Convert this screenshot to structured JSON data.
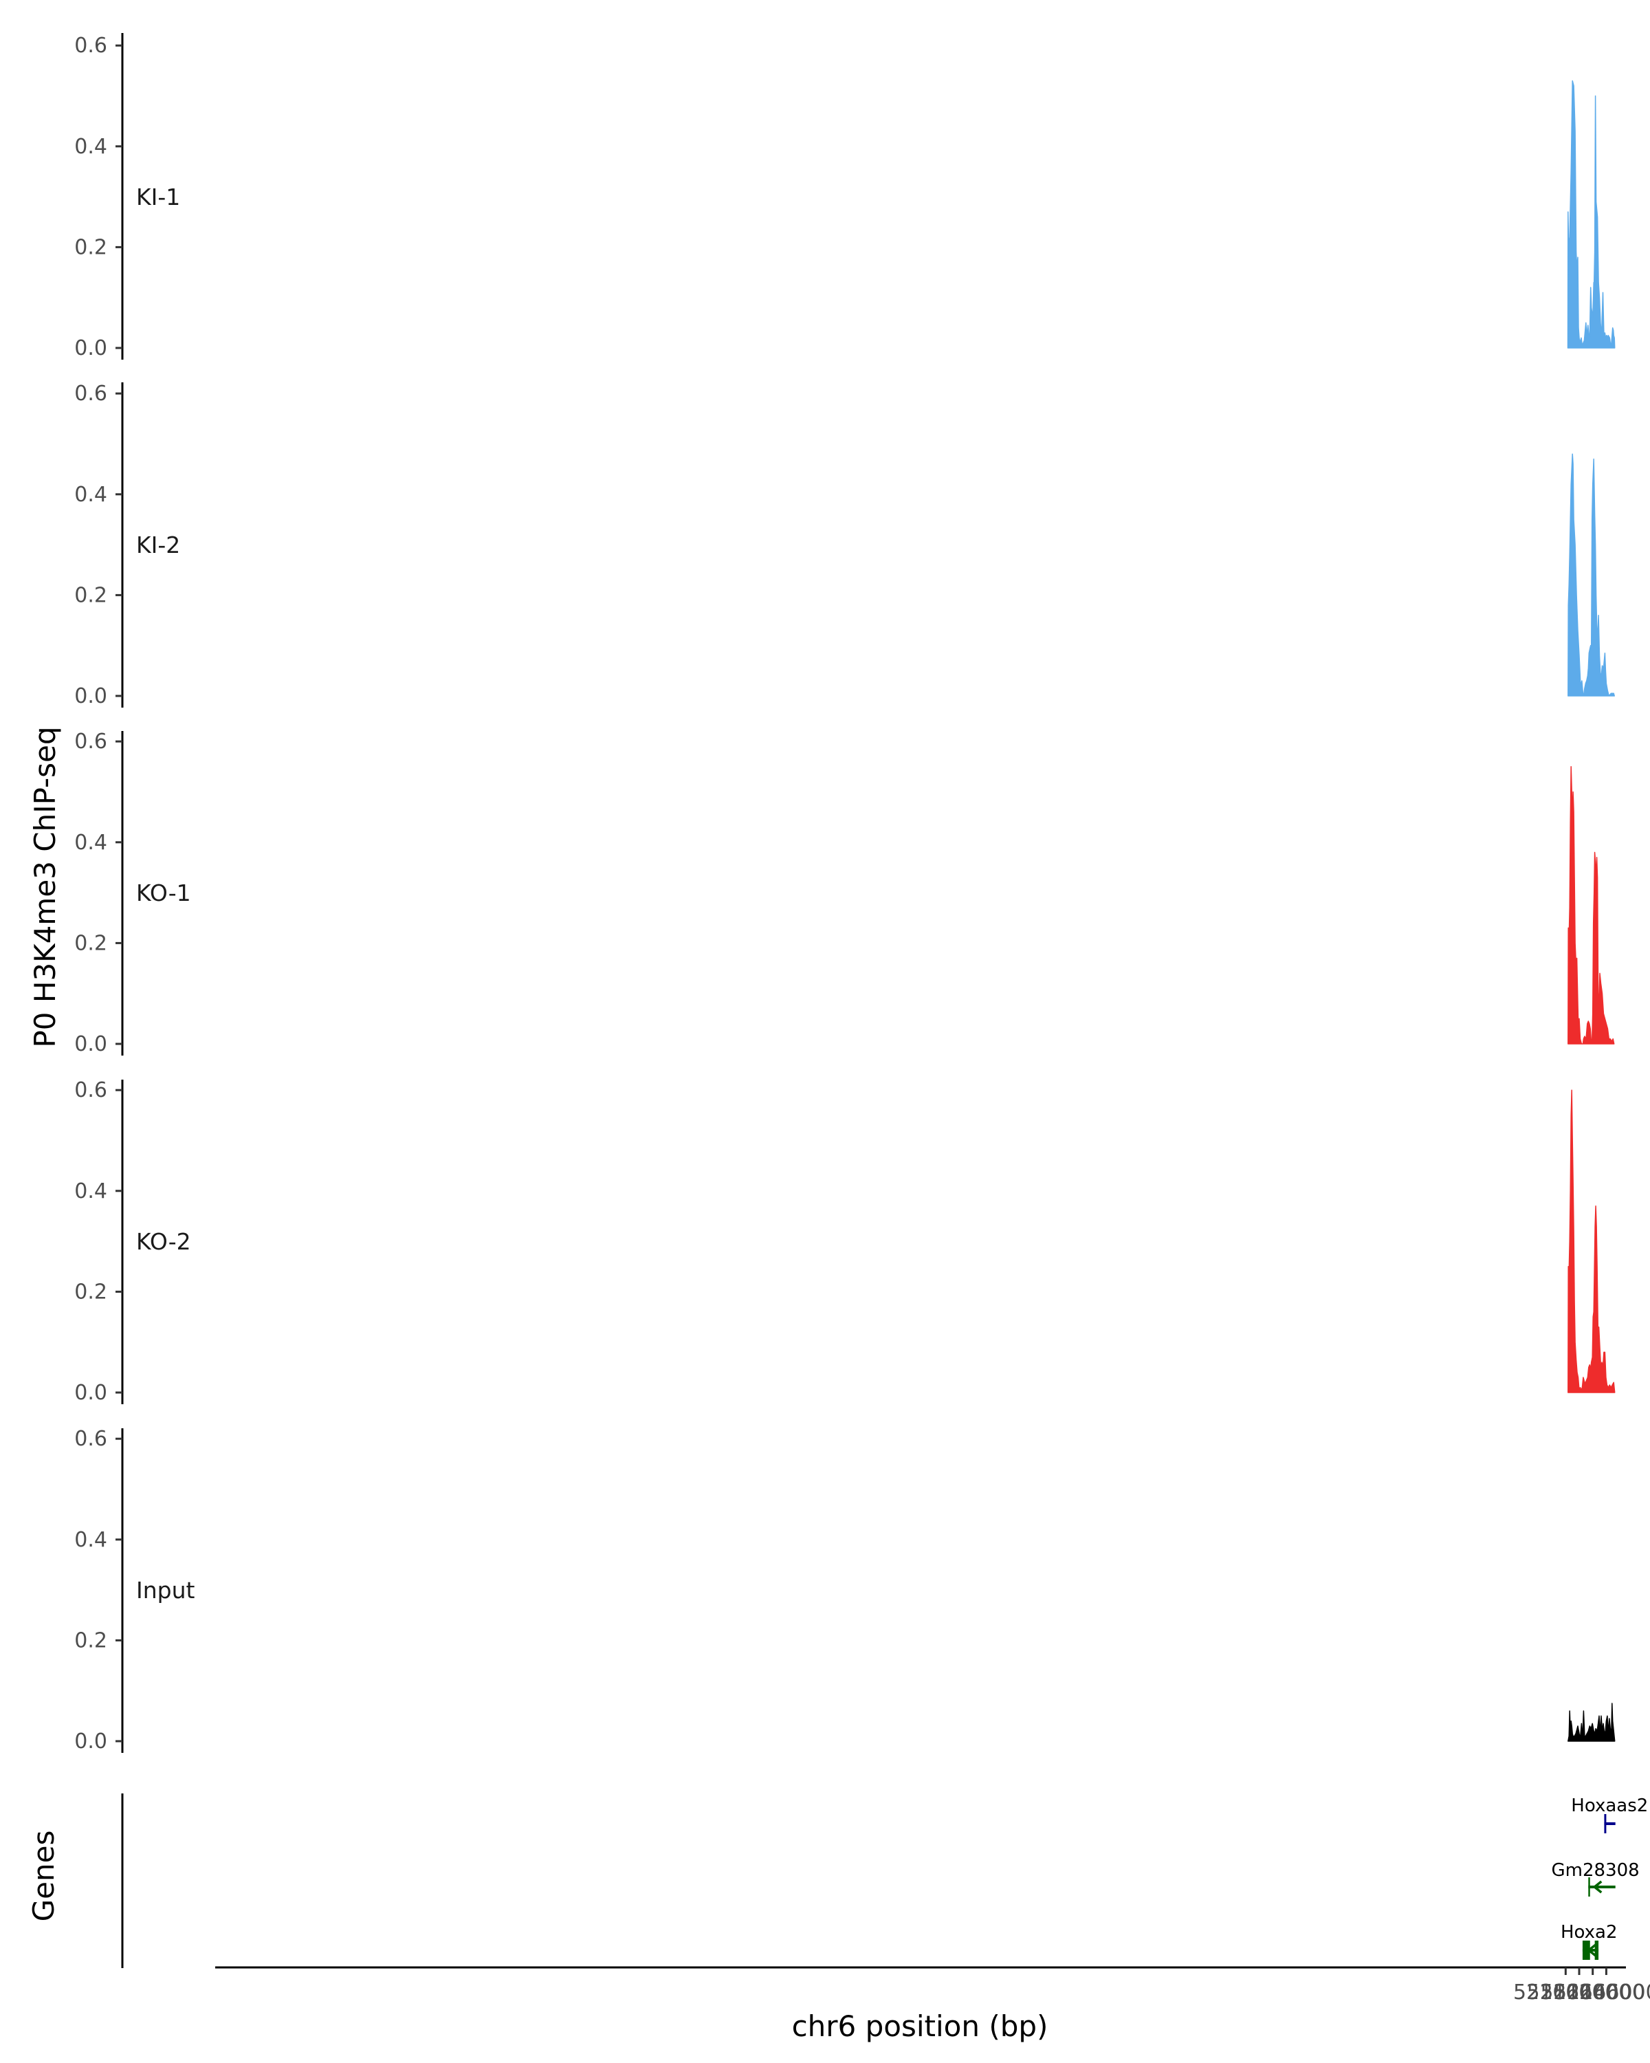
{
  "chart_data": {
    "type": "area",
    "ylabel": "P0 H3K4me3 ChIP-seq",
    "xlabel": "chr6 position (bp)",
    "genes_label": "Genes",
    "xlim": [
      51960500,
      52168500
    ],
    "ylim": [
      0,
      0.6
    ],
    "yticks": [
      0.0,
      0.2,
      0.4,
      0.6
    ],
    "ytick_labels": [
      "0.0",
      "0.2",
      "0.4",
      "0.6"
    ],
    "xticks": [
      52160000,
      52162000,
      52164000,
      52166000
    ],
    "xtick_labels": [
      "52160000",
      "52162000",
      "52164000",
      "52166000"
    ],
    "colors": {
      "KI": "#5dabea",
      "KO": "#ee2c2c",
      "Input": "#000000",
      "plus_strand": "#00008b",
      "minus_strand": "#006400"
    },
    "tracks": [
      {
        "name": "KI-1",
        "color": "#5dabea",
        "start": 52160320,
        "end": 52167250,
        "x": [
          52160320,
          52160350,
          52160450,
          52160600,
          52160800,
          52161000,
          52161200,
          52161400,
          52161550,
          52161650,
          52161800,
          52161900,
          52162000,
          52162150,
          52162300,
          52162450,
          52162600,
          52162750,
          52162850,
          52163000,
          52163100,
          52163150,
          52163250,
          52163300,
          52163500,
          52163550,
          52163700,
          52163800,
          52164000,
          52164050,
          52164150,
          52164200,
          52164300,
          52164400,
          52164500,
          52164700,
          52164850,
          52165000,
          52165150,
          52165300,
          52165400,
          52165500,
          52165650,
          52165750,
          52165800,
          52165900,
          52166050,
          52166200,
          52166300,
          52166500,
          52166700,
          52166950,
          52167050,
          52167100,
          52167200,
          52167250
        ],
        "values": [
          0.0,
          0.27,
          0.2,
          0.22,
          0.35,
          0.53,
          0.52,
          0.43,
          0.19,
          0.16,
          0.18,
          0.04,
          0.02,
          0.01,
          0.02,
          0.005,
          0.01,
          0.015,
          0.03,
          0.05,
          0.03,
          0.02,
          0.04,
          0.045,
          0.015,
          0.02,
          0.12,
          0.08,
          0.06,
          0.08,
          0.13,
          0.13,
          0.19,
          0.5,
          0.29,
          0.26,
          0.13,
          0.1,
          0.05,
          0.02,
          0.07,
          0.11,
          0.03,
          0.025,
          0.03,
          0.02,
          0.025,
          0.02,
          0.025,
          0.02,
          0.0,
          0.04,
          0.035,
          0.025,
          0.02,
          0.0
        ]
      },
      {
        "name": "KI-2",
        "color": "#5dabea",
        "start": 52160350,
        "end": 52167200,
        "x": [
          52160350,
          52160400,
          52160500,
          52160600,
          52160800,
          52161000,
          52161100,
          52161200,
          52161400,
          52161600,
          52161800,
          52162000,
          52162200,
          52162400,
          52162550,
          52162650,
          52162800,
          52162950,
          52163100,
          52163250,
          52163350,
          52163450,
          52163600,
          52163700,
          52163800,
          52163900,
          52164000,
          52164150,
          52164300,
          52164400,
          52164500,
          52164600,
          52164700,
          52164850,
          52165000,
          52165150,
          52165300,
          52165400,
          52165600,
          52165700,
          52165800,
          52165900,
          52166000,
          52166200,
          52166400,
          52166700,
          52166900,
          52167100,
          52167200
        ],
        "values": [
          0.0,
          0.18,
          0.22,
          0.28,
          0.42,
          0.48,
          0.46,
          0.35,
          0.3,
          0.2,
          0.13,
          0.08,
          0.02,
          0.03,
          0.005,
          0.0,
          0.015,
          0.025,
          0.03,
          0.04,
          0.055,
          0.085,
          0.095,
          0.1,
          0.09,
          0.35,
          0.42,
          0.47,
          0.36,
          0.3,
          0.2,
          0.14,
          0.11,
          0.16,
          0.08,
          0.04,
          0.045,
          0.06,
          0.055,
          0.07,
          0.085,
          0.05,
          0.025,
          0.01,
          0.0,
          0.005,
          0.005,
          0.005,
          0.0
        ]
      },
      {
        "name": "KO-1",
        "color": "#ee2c2c",
        "start": 52160350,
        "end": 52167150,
        "x": [
          52160350,
          52160400,
          52160500,
          52160600,
          52160700,
          52160800,
          52160900,
          52161000,
          52161100,
          52161200,
          52161400,
          52161550,
          52161650,
          52161800,
          52161900,
          52162000,
          52162150,
          52162350,
          52162450,
          52162550,
          52162650,
          52162800,
          52162950,
          52163050,
          52163200,
          52163350,
          52163500,
          52163650,
          52163800,
          52163900,
          52164000,
          52164100,
          52164200,
          52164300,
          52164400,
          52164500,
          52164600,
          52164700,
          52164800,
          52164900,
          52165050,
          52165200,
          52165400,
          52165600,
          52165800,
          52166000,
          52166200,
          52166400,
          52166600,
          52166800,
          52167000,
          52167150
        ],
        "values": [
          0.0,
          0.23,
          0.21,
          0.27,
          0.44,
          0.55,
          0.5,
          0.45,
          0.5,
          0.46,
          0.2,
          0.15,
          0.17,
          0.08,
          0.02,
          0.05,
          0.01,
          0.0,
          0.0,
          0.0,
          0.01,
          0.015,
          0.01,
          0.015,
          0.04,
          0.045,
          0.04,
          0.03,
          0.0,
          0.005,
          0.06,
          0.24,
          0.3,
          0.38,
          0.36,
          0.33,
          0.37,
          0.33,
          0.1,
          0.07,
          0.14,
          0.12,
          0.1,
          0.06,
          0.05,
          0.04,
          0.03,
          0.01,
          0.01,
          0.005,
          0.01,
          0.0
        ]
      },
      {
        "name": "KO-2",
        "color": "#ee2c2c",
        "start": 52160350,
        "end": 52167250,
        "x": [
          52160350,
          52160400,
          52160500,
          52160600,
          52160700,
          52160800,
          52160900,
          52161000,
          52161100,
          52161200,
          52161300,
          52161400,
          52161550,
          52161700,
          52161850,
          52162000,
          52162150,
          52162300,
          52162450,
          52162600,
          52162800,
          52162950,
          52163100,
          52163250,
          52163400,
          52163550,
          52163700,
          52163800,
          52163950,
          52164050,
          52164150,
          52164250,
          52164350,
          52164450,
          52164550,
          52164650,
          52164800,
          52164900,
          52165050,
          52165200,
          52165350,
          52165500,
          52165650,
          52165800,
          52165950,
          52166100,
          52166300,
          52166500,
          52166700,
          52166900,
          52167100,
          52167250
        ],
        "values": [
          0.0,
          0.25,
          0.24,
          0.3,
          0.4,
          0.55,
          0.6,
          0.5,
          0.42,
          0.32,
          0.18,
          0.1,
          0.065,
          0.04,
          0.03,
          0.005,
          0.01,
          0.005,
          0.01,
          0.03,
          0.02,
          0.02,
          0.025,
          0.03,
          0.05,
          0.055,
          0.045,
          0.06,
          0.07,
          0.15,
          0.16,
          0.25,
          0.33,
          0.37,
          0.33,
          0.25,
          0.1,
          0.13,
          0.09,
          0.05,
          0.06,
          0.05,
          0.08,
          0.08,
          0.03,
          0.015,
          0.01,
          0.015,
          0.01,
          0.015,
          0.02,
          0.0
        ]
      },
      {
        "name": "Input",
        "color": "#000000",
        "start": 52160350,
        "end": 52167250,
        "x": [
          52160350,
          52160500,
          52160600,
          52160700,
          52160800,
          52160900,
          52161000,
          52161100,
          52161300,
          52161500,
          52161600,
          52161800,
          52162000,
          52162150,
          52162350,
          52162500,
          52162650,
          52162800,
          52162950,
          52163150,
          52163350,
          52163550,
          52163750,
          52163950,
          52164150,
          52164300,
          52164450,
          52164650,
          52164800,
          52164950,
          52165100,
          52165250,
          52165400,
          52165550,
          52165700,
          52165850,
          52166000,
          52166150,
          52166300,
          52166450,
          52166600,
          52166750,
          52166850,
          52166950,
          52167100,
          52167250
        ],
        "values": [
          0.0,
          0.01,
          0.06,
          0.02,
          0.04,
          0.03,
          0.015,
          0.01,
          0.01,
          0.015,
          0.02,
          0.03,
          0.015,
          0.005,
          0.035,
          0.005,
          0.06,
          0.01,
          0.01,
          0.015,
          0.02,
          0.03,
          0.025,
          0.035,
          0.02,
          0.015,
          0.025,
          0.02,
          0.035,
          0.05,
          0.015,
          0.05,
          0.02,
          0.035,
          0.02,
          0.015,
          0.04,
          0.05,
          0.015,
          0.045,
          0.025,
          0.015,
          0.075,
          0.04,
          0.02,
          0.0
        ]
      }
    ],
    "genes": [
      {
        "name": "Hoxaas2",
        "strand": "+",
        "color": "#00008b",
        "start": 52165700,
        "end": 52167350,
        "exons": [
          [
            52165700,
            52166000
          ]
        ]
      },
      {
        "name": "Gm28308",
        "strand": "-",
        "color": "#006400",
        "start": 52163350,
        "end": 52167350,
        "exons": [
          [
            52163350,
            52163600
          ]
        ]
      },
      {
        "name": "Hoxa2",
        "strand": "-",
        "color": "#006400",
        "start": 52162500,
        "end": 52164850,
        "exons": [
          [
            52162500,
            52163600
          ],
          [
            52164300,
            52164850
          ]
        ]
      }
    ]
  }
}
